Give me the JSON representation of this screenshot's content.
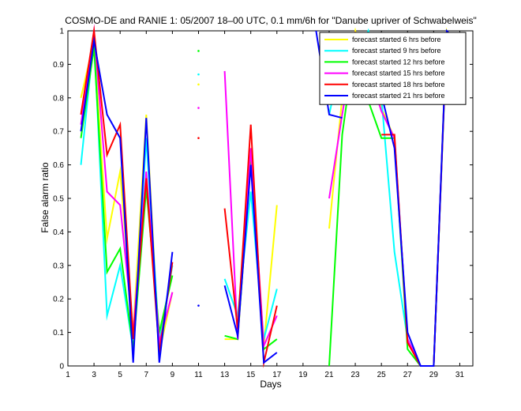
{
  "chart_data": {
    "type": "line",
    "title": "COSMO-DE and RANIE 1: 05/2007 18–00 UTC, 0.1 mm/6h for \"Danube upriver of Schwabelweis\"",
    "xlabel": "Days",
    "ylabel": "False alarm ratio",
    "xlim": [
      1,
      32
    ],
    "ylim": [
      0,
      1
    ],
    "xticks": [
      1,
      3,
      5,
      7,
      9,
      11,
      13,
      15,
      17,
      19,
      21,
      23,
      25,
      27,
      29,
      31
    ],
    "yticks": [
      0,
      0.1,
      0.2,
      0.3,
      0.4,
      0.5,
      0.6,
      0.7,
      0.8,
      0.9,
      1
    ],
    "ytick_labels": [
      "0",
      "0.1",
      "0.2",
      "0.3",
      "0.4",
      "0.5",
      "0.6",
      "0.7",
      "0.8",
      "0.9",
      "1"
    ],
    "grid": false,
    "legend_position": "top-right",
    "series": [
      {
        "name": "forecast started 6 hrs before",
        "color": "#ffff00",
        "x": [
          2,
          3,
          4,
          5,
          6,
          7,
          8,
          9,
          11,
          13,
          14,
          15,
          16,
          17,
          21,
          22,
          23,
          24,
          25,
          26,
          27,
          28,
          29,
          30,
          31
        ],
        "y": [
          0.8,
          0.97,
          0.38,
          0.58,
          0.1,
          0.75,
          0.04,
          0.22,
          0.84,
          0.08,
          0.08,
          0.62,
          0.06,
          0.48,
          0.41,
          0.8,
          1.0,
          0.85,
          0.77,
          0.68,
          0.07,
          0.0,
          0.0,
          1.0,
          0.91
        ],
        "gaps_after": [
          9,
          11,
          17
        ]
      },
      {
        "name": "forecast started 9 hrs before",
        "color": "#00ffff",
        "x": [
          2,
          3,
          4,
          5,
          6,
          7,
          8,
          9,
          11,
          13,
          14,
          15,
          16,
          17,
          21,
          22,
          23,
          24,
          25,
          26,
          27,
          28,
          29,
          30,
          31
        ],
        "y": [
          0.6,
          0.98,
          0.15,
          0.3,
          0.05,
          0.68,
          0.07,
          0.3,
          0.87,
          0.26,
          0.15,
          0.52,
          0.08,
          0.23,
          0.75,
          0.93,
          0.91,
          1.0,
          0.8,
          0.34,
          0.08,
          0.0,
          0.0,
          0.99,
          0.85
        ],
        "gaps_after": [
          9,
          11,
          17
        ]
      },
      {
        "name": "forecast started 12 hrs before",
        "color": "#00ff00",
        "x": [
          2,
          3,
          4,
          5,
          6,
          7,
          8,
          9,
          11,
          13,
          14,
          15,
          16,
          17,
          21,
          22,
          23,
          24,
          25,
          26,
          27,
          28,
          29,
          30,
          31
        ],
        "y": [
          0.68,
          0.95,
          0.28,
          0.35,
          0.05,
          0.53,
          0.1,
          0.27,
          0.94,
          0.09,
          0.08,
          0.62,
          0.05,
          0.08,
          0.0,
          0.69,
          0.97,
          0.79,
          0.68,
          0.68,
          0.05,
          0.0,
          0.0,
          0.98,
          0.81
        ],
        "gaps_after": [
          9,
          11,
          17
        ]
      },
      {
        "name": "forecast started 15 hrs before",
        "color": "#ff00ff",
        "x": [
          2,
          3,
          4,
          5,
          6,
          7,
          8,
          9,
          11,
          13,
          14,
          15,
          16,
          17,
          21,
          22,
          23,
          24,
          25,
          26,
          27,
          28,
          29,
          30,
          31
        ],
        "y": [
          0.72,
          1.0,
          0.52,
          0.48,
          0.1,
          0.58,
          0.07,
          0.22,
          0.77,
          0.88,
          0.08,
          0.65,
          0.06,
          0.15,
          0.5,
          0.75,
          0.99,
          0.88,
          0.76,
          0.68,
          0.08,
          0.0,
          0.0,
          0.99,
          0.91
        ],
        "gaps_after": [
          9,
          11,
          17
        ]
      },
      {
        "name": "forecast started 18 hrs before",
        "color": "#ff0000",
        "x": [
          2,
          3,
          4,
          5,
          6,
          7,
          8,
          9,
          11,
          13,
          14,
          15,
          16,
          17,
          22,
          23,
          25,
          26,
          27,
          28,
          29,
          30,
          31
        ],
        "y": [
          0.75,
          1.0,
          0.63,
          0.72,
          0.08,
          0.56,
          0.04,
          0.31,
          0.68,
          0.47,
          0.11,
          0.72,
          0.01,
          0.18,
          0.78,
          0.91,
          0.69,
          0.69,
          0.07,
          0.0,
          0.0,
          0.99,
          0.96
        ],
        "gaps_after": [
          9,
          11,
          17,
          23
        ]
      },
      {
        "name": "forecast started 21 hrs before",
        "color": "#0000ff",
        "x": [
          2,
          3,
          4,
          5,
          6,
          7,
          8,
          9,
          11,
          13,
          14,
          15,
          16,
          17,
          20,
          21,
          22,
          25,
          26,
          27,
          28,
          29,
          30,
          31
        ],
        "y": [
          0.7,
          0.97,
          0.75,
          0.68,
          0.01,
          0.74,
          0.01,
          0.34,
          0.18,
          0.24,
          0.09,
          0.6,
          0.01,
          0.04,
          1.0,
          0.75,
          0.74,
          0.81,
          0.65,
          0.1,
          0.0,
          0.0,
          1.0,
          0.96
        ],
        "gaps_after": [
          9,
          11,
          17,
          22
        ]
      }
    ]
  }
}
